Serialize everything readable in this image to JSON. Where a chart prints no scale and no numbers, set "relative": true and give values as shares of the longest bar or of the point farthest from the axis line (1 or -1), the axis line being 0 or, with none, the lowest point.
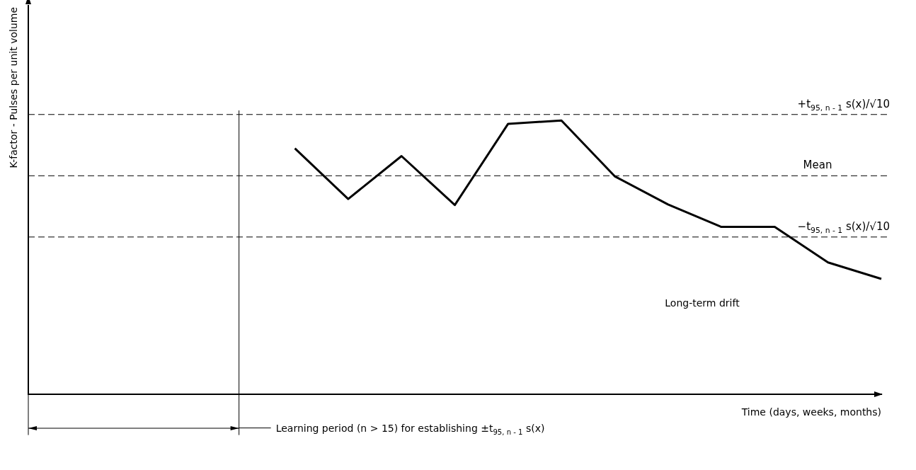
{
  "chart_data": {
    "type": "line",
    "relative": true,
    "xlabel": "Time (days, weeks, months)",
    "ylabel": "K-factor - Pulses per unit volume",
    "categories": [
      null,
      null,
      null,
      null,
      null,
      null,
      null,
      null,
      null,
      null,
      null,
      null,
      null,
      null,
      null,
      null,
      null
    ],
    "series": [
      {
        "color": "#000000",
        "values": [
          null,
          null,
          null,
          null,
          null,
          0.898,
          0.713,
          0.87,
          0.691,
          0.988,
          1,
          0.796,
          0.693,
          0.611,
          0.611,
          0.481,
          0.421
        ]
      }
    ],
    "ref_lines": [
      {
        "axis": "y",
        "value": 1.022,
        "label": "+t$_{95, n - 1}$ s(x)/√10",
        "color": "#000000",
        "line_style": "dashed"
      },
      {
        "axis": "y",
        "value": 0.798,
        "label": "Mean",
        "color": "#000000",
        "line_style": "dashed"
      },
      {
        "axis": "y",
        "value": 0.574,
        "label": "−t$_{95, n - 1}$ s(x)/√10",
        "color": "#000000",
        "line_style": "dashed"
      }
    ],
    "annotations": [
      "Long-term drift",
      "Learning period (n > 15) for establishing ±t$_{95, n - 1}$ s(x)"
    ],
    "marker": "none",
    "line_style": "solid",
    "legend": false
  }
}
